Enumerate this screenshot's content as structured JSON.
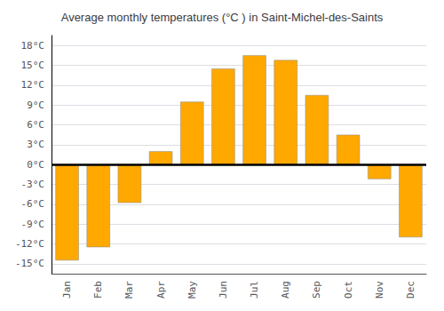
{
  "chart_data": {
    "type": "bar",
    "title": "Average monthly temperatures (°C ) in Saint-Michel-des-Saints",
    "categories": [
      "Jan",
      "Feb",
      "Mar",
      "Apr",
      "May",
      "Jun",
      "Jul",
      "Aug",
      "Sep",
      "Oct",
      "Nov",
      "Dec"
    ],
    "values": [
      -14.5,
      -12.5,
      -5.8,
      2.0,
      9.5,
      14.5,
      16.5,
      15.8,
      10.5,
      4.5,
      -2.2,
      -11.0
    ],
    "color": "#FFA800",
    "ylim": [
      -16.5,
      19.5
    ],
    "yticks": [
      {
        "value": -15,
        "label": "-15°C"
      },
      {
        "value": -12,
        "label": "-12°C"
      },
      {
        "value": -9,
        "label": "-9°C"
      },
      {
        "value": -6,
        "label": "-6°C"
      },
      {
        "value": -3,
        "label": "-3°C"
      },
      {
        "value": 0,
        "label": "0°C"
      },
      {
        "value": 3,
        "label": "3°C"
      },
      {
        "value": 6,
        "label": "6°C"
      },
      {
        "value": 9,
        "label": "9°C"
      },
      {
        "value": 12,
        "label": "12°C"
      },
      {
        "value": 15,
        "label": "15°C"
      },
      {
        "value": 18,
        "label": "18°C"
      }
    ],
    "grid": true
  }
}
